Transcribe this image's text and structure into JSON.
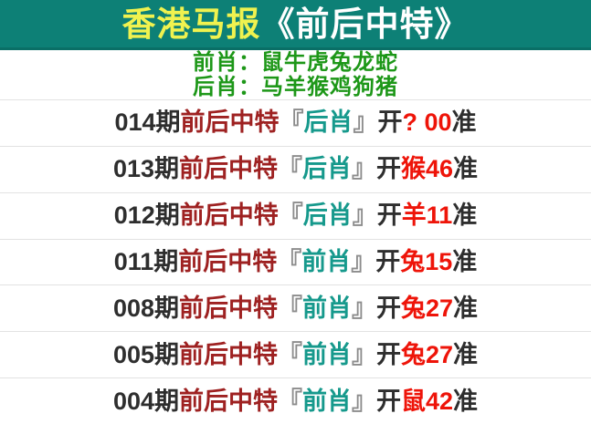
{
  "header": {
    "title_highlight": "香港马报",
    "title_rest": "《前后中特》"
  },
  "zodiac": {
    "front_line": "前肖：鼠牛虎兔龙蛇",
    "back_line": "后肖：马羊猴鸡狗猪"
  },
  "rows": [
    {
      "period": "014期",
      "label": "前后中特",
      "bracket_open": "『",
      "type": "后肖",
      "bracket_close": "』",
      "open_char": "开",
      "result": "? 00",
      "accurate": "准"
    },
    {
      "period": "013期",
      "label": "前后中特",
      "bracket_open": "『",
      "type": "后肖",
      "bracket_close": "』",
      "open_char": "开",
      "result": "猴46",
      "accurate": "准"
    },
    {
      "period": "012期",
      "label": "前后中特",
      "bracket_open": "『",
      "type": "后肖",
      "bracket_close": "』",
      "open_char": "开",
      "result": "羊11",
      "accurate": "准"
    },
    {
      "period": "011期",
      "label": "前后中特",
      "bracket_open": "『",
      "type": "前肖",
      "bracket_close": "』",
      "open_char": "开",
      "result": "兔15",
      "accurate": "准"
    },
    {
      "period": "008期",
      "label": "前后中特",
      "bracket_open": "『",
      "type": "前肖",
      "bracket_close": "』",
      "open_char": "开",
      "result": "兔27",
      "accurate": "准"
    },
    {
      "period": "005期",
      "label": "前后中特",
      "bracket_open": "『",
      "type": "前肖",
      "bracket_close": "』",
      "open_char": "开",
      "result": "兔27",
      "accurate": "准"
    },
    {
      "period": "004期",
      "label": "前后中特",
      "bracket_open": "『",
      "type": "前肖",
      "bracket_close": "』",
      "open_char": "开",
      "result": "鼠42",
      "accurate": "准"
    }
  ],
  "colors": {
    "header_bg": "#0d8076",
    "header_border": "#0a6f66",
    "title_highlight": "#f0f24f",
    "title_rest": "#ffffff",
    "zodiac_green": "#1d9718",
    "period_dark": "#2e2e2e",
    "label_darkred": "#9e2121",
    "bracket_gray": "#8c8c8c",
    "type_teal": "#16998c",
    "result_red": "#ee1409",
    "separator": "#e2e2e2"
  }
}
